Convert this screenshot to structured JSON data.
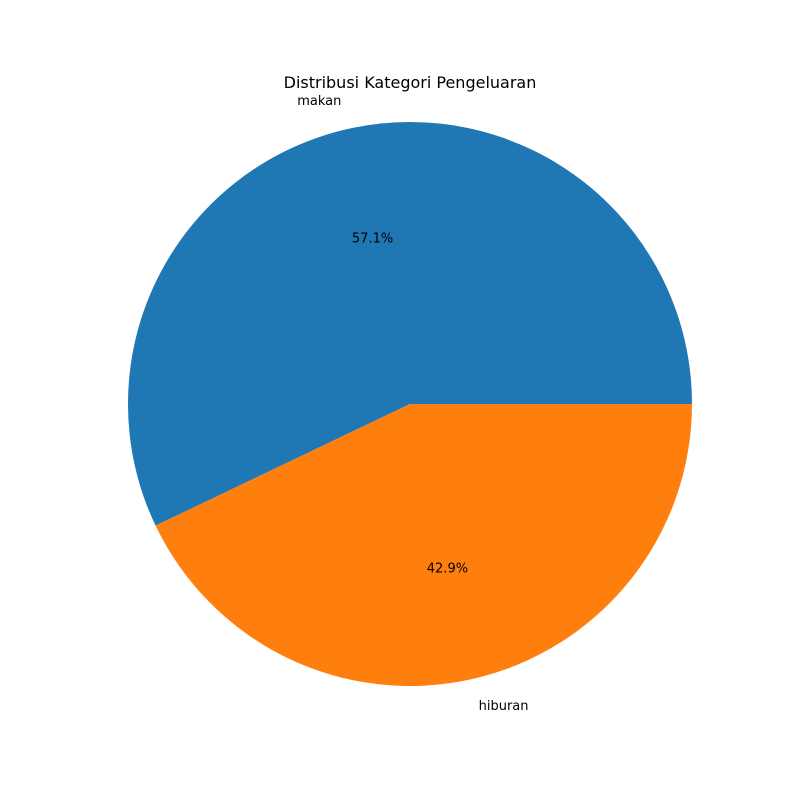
{
  "chart_data": {
    "type": "pie",
    "title": "Distribusi Kategori Pengeluaran",
    "categories": [
      "makan",
      "hiburan"
    ],
    "values": [
      57.1,
      42.9
    ],
    "percent_labels": [
      "57.1%",
      "42.9%"
    ],
    "colors": [
      "#1f77b4",
      "#ff7f0e"
    ],
    "start_angle_deg": 0,
    "direction": "counterclockwise"
  }
}
